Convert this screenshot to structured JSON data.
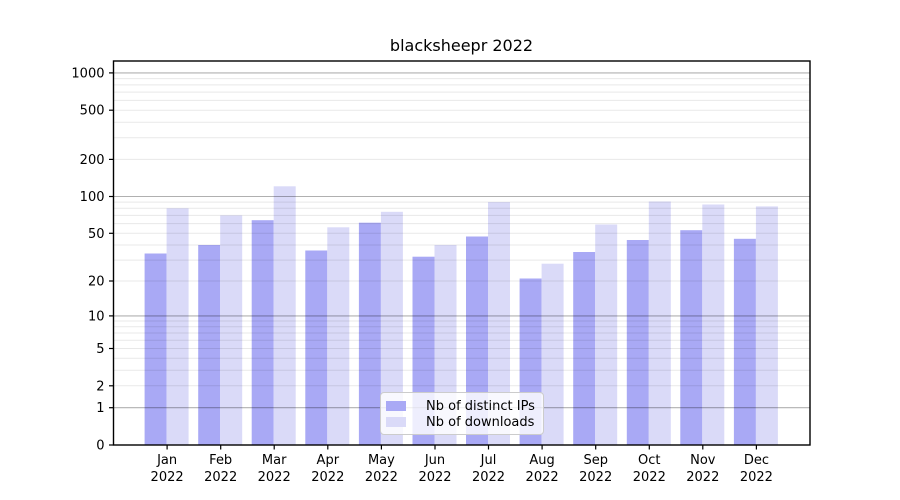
{
  "title": "blacksheepr 2022",
  "legend": {
    "items": [
      {
        "label": "Nb of distinct IPs",
        "color": "#a9a9f5"
      },
      {
        "label": "Nb of downloads",
        "color": "#dadaf8"
      }
    ]
  },
  "chart_data": {
    "type": "bar",
    "title": "blacksheepr 2022",
    "categories": [
      "Jan",
      "Feb",
      "Mar",
      "Apr",
      "May",
      "Jun",
      "Jul",
      "Aug",
      "Sep",
      "Oct",
      "Nov",
      "Dec"
    ],
    "x_year": "2022",
    "series": [
      {
        "name": "Nb of distinct IPs",
        "color": "#a9a9f5",
        "values": [
          34,
          40,
          64,
          36,
          61,
          32,
          47,
          21,
          35,
          44,
          53,
          45
        ]
      },
      {
        "name": "Nb of downloads",
        "color": "#dadaf8",
        "values": [
          80,
          70,
          121,
          56,
          75,
          40,
          90,
          28,
          59,
          91,
          86,
          83
        ]
      }
    ],
    "xlabel": "",
    "ylabel": "",
    "yscale": "log1p",
    "y_ticks": [
      0,
      1,
      2,
      5,
      10,
      20,
      50,
      100,
      200,
      500,
      1000
    ],
    "y_minor_ticks": [
      2,
      3,
      4,
      5,
      6,
      7,
      8,
      9,
      20,
      30,
      40,
      50,
      60,
      70,
      80,
      90,
      200,
      300,
      400,
      500,
      600,
      700,
      800,
      900
    ],
    "y_major_gridlines": [
      1,
      10,
      100,
      1000
    ],
    "ylim": [
      0,
      1250
    ],
    "grid": true,
    "legend_position": "lower center",
    "grid_major_color": "#b0b0b0",
    "grid_minor_color": "#e9e9e9",
    "axis_color": "#000000"
  }
}
